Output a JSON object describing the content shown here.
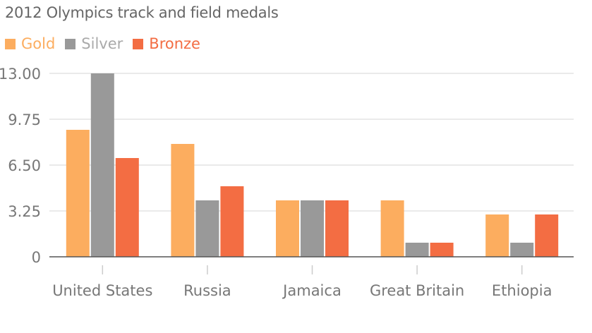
{
  "chart_data": {
    "type": "bar",
    "title": "2012 Olympics track and field medals",
    "xlabel": "",
    "ylabel": "",
    "categories": [
      "United States",
      "Russia",
      "Jamaica",
      "Great Britain",
      "Ethiopia"
    ],
    "series": [
      {
        "name": "Gold",
        "color": "#fcad5f",
        "values": [
          9,
          8,
          4,
          4,
          3
        ]
      },
      {
        "name": "Silver",
        "color": "#999999",
        "values": [
          13,
          4,
          4,
          1,
          1
        ]
      },
      {
        "name": "Bronze",
        "color": "#f36d43",
        "values": [
          7,
          5,
          4,
          1,
          3
        ]
      }
    ],
    "ylim": [
      0,
      13
    ],
    "yticks": [
      0,
      3.25,
      6.5,
      9.75,
      13
    ],
    "ytick_labels": [
      "0",
      "3.25",
      "6.50",
      "9.75",
      "13.00"
    ],
    "grid": true,
    "legend_position": "top-left"
  }
}
